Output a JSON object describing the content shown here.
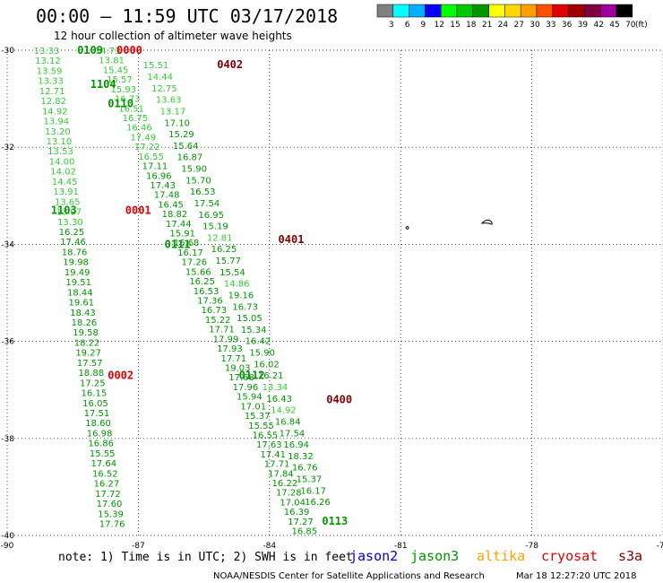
{
  "title": "00:00 – 11:59 UTC 03/17/2018",
  "subtitle": "12 hour collection of altimeter wave heights",
  "legend": {
    "unit": "(ft)",
    "bins": [
      {
        "label": "3",
        "color": "#808080"
      },
      {
        "label": "6",
        "color": "#00ffff"
      },
      {
        "label": "9",
        "color": "#00b0ff"
      },
      {
        "label": "12",
        "color": "#0000ff"
      },
      {
        "label": "15",
        "color": "#00ff00"
      },
      {
        "label": "18",
        "color": "#00c800"
      },
      {
        "label": "21",
        "color": "#009600"
      },
      {
        "label": "24",
        "color": "#ffff00"
      },
      {
        "label": "27",
        "color": "#ffd700"
      },
      {
        "label": "30",
        "color": "#ffa000"
      },
      {
        "label": "33",
        "color": "#ff5000"
      },
      {
        "label": "36",
        "color": "#e00000"
      },
      {
        "label": "39",
        "color": "#a00000"
      },
      {
        "label": "42",
        "color": "#800040"
      },
      {
        "label": "45",
        "color": "#a000a0"
      },
      {
        "label": "70",
        "color": "#000000"
      }
    ]
  },
  "note": "note: 1) Time is in UTC; 2) SWH is in feet",
  "satellites": [
    {
      "name": "jason2",
      "color": "#0000e0"
    },
    {
      "name": "jason3",
      "color": "#009600"
    },
    {
      "name": "altika",
      "color": "#ffa000"
    },
    {
      "name": "cryosat",
      "color": "#e00000"
    },
    {
      "name": "s3a",
      "color": "#800000"
    }
  ],
  "credit": "NOAA/NESDIS Center for Satellite Applications and Research",
  "generated": "Mar 18 12:27:20 UTC 2018",
  "chart_data": {
    "type": "scatter",
    "x_ticks": [
      "-90",
      "-87",
      "-84",
      "-81",
      "-78",
      "-75"
    ],
    "y_ticks": [
      "-30",
      "-32",
      "-34",
      "-36",
      "-38",
      "-40"
    ],
    "xlim": [
      -90,
      -75
    ],
    "ylim": [
      -40,
      -30
    ],
    "grid": true,
    "tracks": [
      {
        "sat": "jason3",
        "lon_start": -89.1,
        "lat_start": -30.0,
        "lon_end": -87.6,
        "lat_end": -39.75,
        "values": [
          13.33,
          13.12,
          13.59,
          13.33,
          12.71,
          12.82,
          14.92,
          13.94,
          13.2,
          13.1,
          13.53,
          14.0,
          14.02,
          14.45,
          13.91,
          13.65,
          13.97,
          13.3,
          16.25,
          17.46,
          18.76,
          19.98,
          19.49,
          19.51,
          18.44,
          19.61,
          18.43,
          18.26,
          19.58,
          18.22,
          19.27,
          17.57,
          18.88,
          17.25,
          16.15,
          16.05,
          17.51,
          18.6,
          16.98,
          16.86,
          15.55,
          17.64,
          16.52,
          16.27,
          17.72,
          17.6,
          15.39,
          17.76
        ],
        "colors": [
          "l",
          "l",
          "l",
          "l",
          "l",
          "l",
          "l",
          "l",
          "l",
          "l",
          "l",
          "l",
          "l",
          "l",
          "l",
          "l",
          "l",
          "l",
          "d",
          "d",
          "d",
          "d",
          "d",
          "d",
          "d",
          "d",
          "d",
          "d",
          "d",
          "d",
          "d",
          "d",
          "d",
          "d",
          "d",
          "d",
          "d",
          "d",
          "d",
          "d",
          "d",
          "d",
          "d",
          "d",
          "d",
          "d",
          "d",
          "d"
        ],
        "labels": [
          {
            "text": "1103",
            "lon": -89.0,
            "lat": -33.3,
            "color": "#009600"
          }
        ]
      },
      {
        "sat": "jason3",
        "lon_start": -87.7,
        "lat_start": -30.0,
        "lon_end": -83.2,
        "lat_end": -39.9,
        "values": [
          14.73,
          13.81,
          15.45,
          15.57,
          15.93,
          16.73,
          16.51,
          16.75,
          16.46,
          17.49,
          17.22,
          16.55,
          17.11,
          16.96,
          17.43,
          17.48,
          16.45,
          18.82,
          17.44,
          15.91,
          16.68,
          16.17,
          17.26,
          15.66,
          16.25,
          16.53,
          17.36,
          16.73,
          15.22,
          17.71,
          17.99,
          17.93,
          17.71,
          19.03,
          17.68,
          17.96,
          15.94,
          17.01,
          15.37,
          15.55,
          16.55,
          17.63,
          17.41,
          17.71,
          17.84,
          16.22,
          17.28,
          17.04,
          16.39,
          17.27,
          16.85
        ],
        "colors": [
          "l",
          "l",
          "l",
          "l",
          "l",
          "l",
          "l",
          "l",
          "l",
          "l",
          "l",
          "l",
          "d",
          "d",
          "d",
          "d",
          "d",
          "d",
          "d",
          "d",
          "d",
          "d",
          "d",
          "d",
          "d",
          "d",
          "d",
          "d",
          "d",
          "d",
          "d",
          "d",
          "d",
          "d",
          "d",
          "d",
          "d",
          "d",
          "d",
          "d",
          "d",
          "d",
          "d",
          "d",
          "d",
          "d",
          "d",
          "d",
          "d",
          "d",
          "d"
        ],
        "labels": [
          {
            "text": "0109",
            "lon": -88.4,
            "lat": -30.0,
            "color": "#009600"
          },
          {
            "text": "1104",
            "lon": -88.1,
            "lat": -30.7,
            "color": "#009600"
          },
          {
            "text": "0110",
            "lon": -87.7,
            "lat": -31.1,
            "color": "#009600"
          },
          {
            "text": "0111",
            "lon": -86.4,
            "lat": -34.0,
            "color": "#009600"
          },
          {
            "text": "0112",
            "lon": -84.7,
            "lat": -36.7,
            "color": "#009600"
          },
          {
            "text": "0113",
            "lon": -82.8,
            "lat": -39.7,
            "color": "#009600"
          }
        ]
      },
      {
        "sat": "s3a",
        "lon_start": -86.6,
        "lat_start": -30.3,
        "lon_end": -82.9,
        "lat_end": -39.3,
        "values": [
          15.51,
          14.44,
          12.75,
          13.63,
          13.17,
          17.1,
          15.29,
          15.64,
          16.87,
          15.9,
          15.7,
          16.53,
          17.54,
          16.95,
          15.19,
          12.81,
          16.25,
          15.77,
          15.54,
          14.86,
          19.16,
          16.73,
          15.05,
          15.34,
          16.42,
          15.9,
          16.02,
          16.21,
          13.34,
          16.43,
          14.92,
          16.84,
          17.54,
          16.94,
          18.32,
          16.76,
          15.37,
          16.17,
          16.26
        ],
        "colors": [
          "l",
          "l",
          "l",
          "l",
          "l",
          "d",
          "d",
          "d",
          "d",
          "d",
          "d",
          "d",
          "d",
          "d",
          "d",
          "l",
          "d",
          "d",
          "d",
          "l",
          "d",
          "d",
          "d",
          "d",
          "d",
          "d",
          "d",
          "d",
          "l",
          "d",
          "l",
          "d",
          "d",
          "d",
          "d",
          "d",
          "d",
          "d",
          "d"
        ],
        "labels": [
          {
            "text": "0402",
            "lon": -85.2,
            "lat": -30.3,
            "color": "#800000"
          },
          {
            "text": "0401",
            "lon": -83.8,
            "lat": -33.9,
            "color": "#800000"
          },
          {
            "text": "0400",
            "lon": -82.7,
            "lat": -37.2,
            "color": "#800000"
          }
        ]
      },
      {
        "sat": "cryosat",
        "labels": [
          {
            "text": "0000",
            "lon": -87.5,
            "lat": -30.0,
            "color": "#e00000"
          },
          {
            "text": "0001",
            "lon": -87.3,
            "lat": -33.3,
            "color": "#e00000"
          },
          {
            "text": "0002",
            "lon": -87.7,
            "lat": -36.7,
            "color": "#e00000"
          }
        ]
      }
    ]
  }
}
